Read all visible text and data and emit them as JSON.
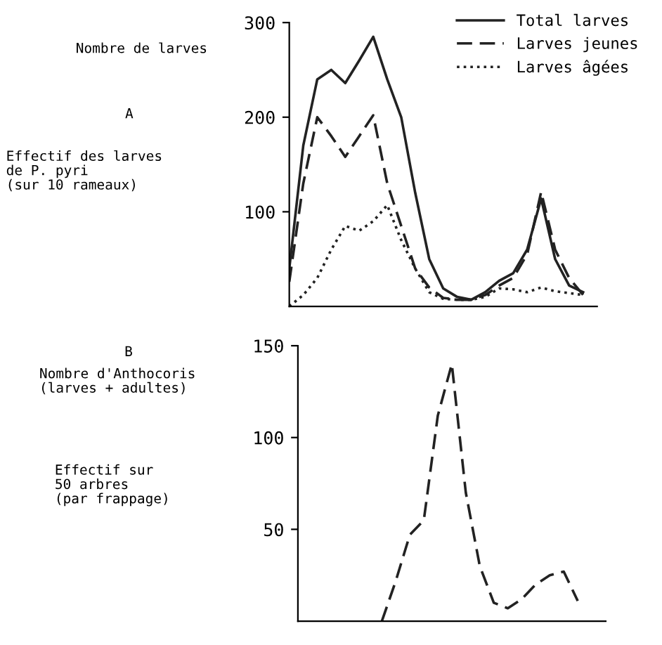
{
  "chart_data": [
    {
      "type": "line",
      "ylabel": "Nombre de larves",
      "annotations": [
        "A",
        "Effectif des larves\nde P. pyri\n(sur 10 rameaux)"
      ],
      "categories": [
        null,
        null,
        null,
        null,
        null,
        null,
        null,
        null,
        null,
        null,
        null,
        null,
        null,
        null,
        null,
        null,
        null,
        null,
        null,
        null,
        null,
        null,
        null
      ],
      "ylim": [
        0,
        300
      ],
      "yticks": [
        100,
        200,
        300
      ],
      "legend": "top right",
      "grid": false,
      "tick_labels": "y",
      "series": [
        {
          "name": "Total larves",
          "color": "#222222",
          "line_style": "solid",
          "values": [
            40,
            170,
            240,
            250,
            236,
            260,
            285,
            240,
            200,
            120,
            50,
            19,
            10,
            7,
            15,
            27,
            35,
            60,
            114,
            50,
            22,
            15,
            null
          ]
        },
        {
          "name": "Larves jeunes",
          "color": "#222222",
          "line_style": "dashed",
          "values": [
            26,
            130,
            200,
            180,
            158,
            180,
            202,
            130,
            85,
            40,
            20,
            9,
            7,
            7,
            12,
            22,
            30,
            55,
            121,
            60,
            30,
            12,
            null
          ]
        },
        {
          "name": "Larves âgées",
          "color": "#222222",
          "line_style": "dotted",
          "values": [
            0,
            12,
            30,
            60,
            85,
            80,
            90,
            107,
            70,
            40,
            15,
            8,
            7,
            7,
            10,
            19,
            18,
            15,
            20,
            16,
            14,
            12,
            null
          ]
        }
      ]
    },
    {
      "type": "line",
      "ylabel": "Nombre d'Anthocoris\n(larves + adultes)",
      "annotations": [
        "B",
        "Effectif sur\n50 arbres\n(par frappage)"
      ],
      "categories": [
        null,
        null,
        null,
        null,
        null,
        null,
        null,
        null,
        null,
        null,
        null,
        null,
        null,
        null,
        null,
        null,
        null,
        null,
        null,
        null,
        null,
        null,
        null
      ],
      "ylim": [
        0,
        150
      ],
      "yticks": [
        50,
        100,
        150
      ],
      "grid": false,
      "tick_labels": "y",
      "series": [
        {
          "color": "#222222",
          "line_style": "dashed",
          "values": [
            null,
            null,
            null,
            null,
            null,
            null,
            0,
            22,
            47,
            55,
            112,
            140,
            70,
            30,
            10,
            7,
            12,
            20,
            25,
            27,
            11,
            null,
            null
          ]
        }
      ]
    }
  ]
}
